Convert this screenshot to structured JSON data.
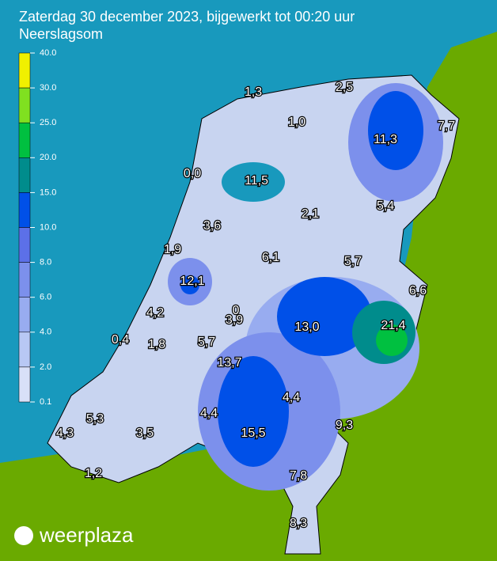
{
  "header": {
    "title": "Zaterdag 30 december 2023, bijgewerkt tot 00:20 uur",
    "subtitle": "Neerslagsom"
  },
  "legend": [
    {
      "label": "40.0",
      "color": "#f0f000"
    },
    {
      "label": "30.0",
      "color": "#80e020"
    },
    {
      "label": "25.0",
      "color": "#00c040"
    },
    {
      "label": "20.0",
      "color": "#008c8c"
    },
    {
      "label": "15.0",
      "color": "#0050e8"
    },
    {
      "label": "10.0",
      "color": "#5c70e8"
    },
    {
      "label": "8.0",
      "color": "#7c90ec"
    },
    {
      "label": "6.0",
      "color": "#98acf0"
    },
    {
      "label": "4.0",
      "color": "#b8c8f4"
    },
    {
      "label": "2.0",
      "color": "#d8e0f8"
    },
    {
      "label": "0.1",
      "color": "#d8e0f8"
    }
  ],
  "stations": [
    "1,3",
    "2,5",
    "1,0",
    "7,7",
    "11,3",
    "0,0",
    "11,5",
    "2,1",
    "5,4",
    "3,6",
    "1,9",
    "6,1",
    "5,7",
    "12,1",
    "6,6",
    "4,2",
    "0",
    "3,9",
    "13,0",
    "21,4",
    "0,4",
    "1,8",
    "5,7",
    "13,7",
    "4,4",
    "5,3",
    "4,4",
    "9,3",
    "4,3",
    "3,5",
    "15,5",
    "1,2",
    "7,8",
    "8,3"
  ],
  "logo": "weerplaza"
}
